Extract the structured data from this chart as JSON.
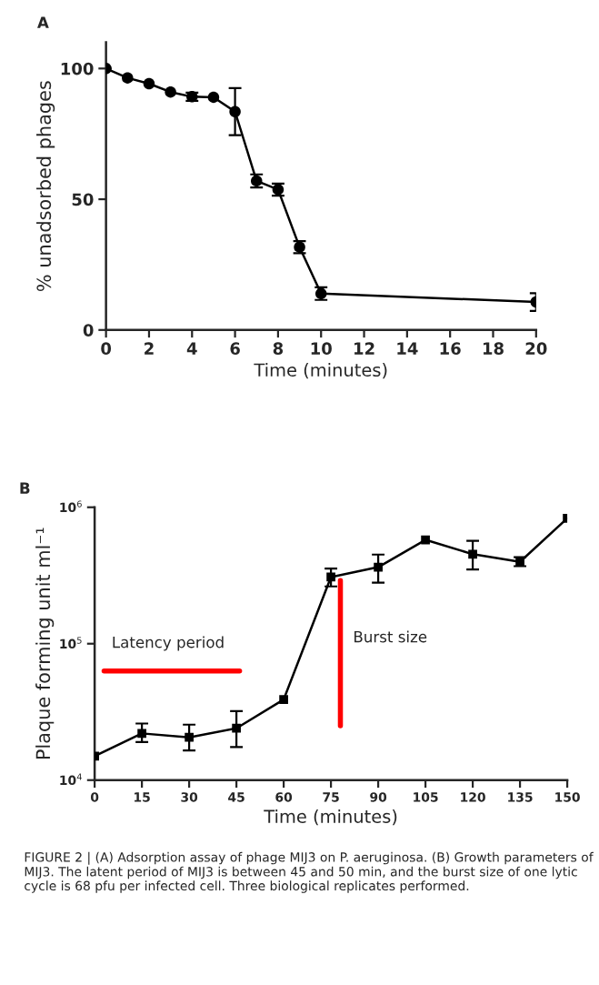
{
  "chart_data": [
    {
      "type": "line",
      "title": "A",
      "xlabel": "Time (minutes)",
      "ylabel": "% unadsorbed phages",
      "marker": "circle",
      "line_style": "solid",
      "grid": false,
      "legend": false,
      "xlim": [
        0,
        20
      ],
      "xticks": [
        0,
        2,
        4,
        6,
        8,
        10,
        12,
        14,
        16,
        18,
        20
      ],
      "ylim": [
        0,
        110
      ],
      "yticks": [
        0,
        50,
        100
      ],
      "series": [
        {
          "color": "#000000",
          "x": [
            0,
            1,
            2,
            3,
            4,
            5,
            6,
            7,
            8,
            9,
            10,
            20
          ],
          "values": [
            100,
            96.4,
            94.2,
            91,
            89.2,
            89,
            83.5,
            57,
            53.7,
            31.7,
            13.9,
            10.7
          ],
          "errors": [
            null,
            null,
            null,
            null,
            1.6,
            null,
            9,
            2.5,
            2.3,
            2.3,
            2.4,
            3.4
          ]
        }
      ]
    },
    {
      "type": "line",
      "title": "B",
      "xlabel": "Time (minutes)",
      "ylabel": "Plaque forming unit ml⁻¹",
      "marker": "square",
      "line_style": "solid",
      "grid": false,
      "legend": false,
      "log": "y",
      "xlim": [
        0,
        150
      ],
      "xticks": [
        0,
        15,
        30,
        45,
        60,
        75,
        90,
        105,
        120,
        135,
        150
      ],
      "ylim": [
        10000,
        1000000
      ],
      "yticks": [
        {
          "value": 10000,
          "label": "10$^{4}$"
        },
        {
          "value": 100000,
          "label": "10$^{5}$"
        },
        {
          "value": 1000000,
          "label": "10$^{6}$"
        }
      ],
      "series": [
        {
          "color": "#000000",
          "x": [
            0,
            15,
            30,
            45,
            60,
            75,
            90,
            105,
            120,
            135,
            150
          ],
          "values": [
            15000,
            22000,
            20600,
            24000,
            39000,
            308000,
            364000,
            577000,
            453000,
            398000,
            830000
          ],
          "errors": [
            null,
            [
              19000,
              26000
            ],
            [
              16500,
              25500
            ],
            [
              17500,
              32000
            ],
            null,
            [
              263000,
              355000
            ],
            [
              280000,
              450000
            ],
            null,
            [
              350000,
              567000
            ],
            [
              370000,
              430000
            ],
            null
          ]
        },
        {
          "color": "#ff0000",
          "marker": "none",
          "x": [
            3,
            46
          ],
          "values": [
            63000,
            63000
          ]
        },
        {
          "color": "#ff0000",
          "marker": "none",
          "x": [
            78,
            78
          ],
          "values": [
            25000,
            290000
          ]
        }
      ],
      "annotations": [
        "Latency period",
        "Burst size",
        "FIGURE 2 | (A) Adsorption assay of phage MIJ3 on P. aeruginosa. (B) Growth parameters of MIJ3. The latent period of MIJ3 is between 45 and 50 min, and the burst size of one lytic cycle is 68 pfu per infected cell. Three biological replicates performed."
      ]
    }
  ]
}
